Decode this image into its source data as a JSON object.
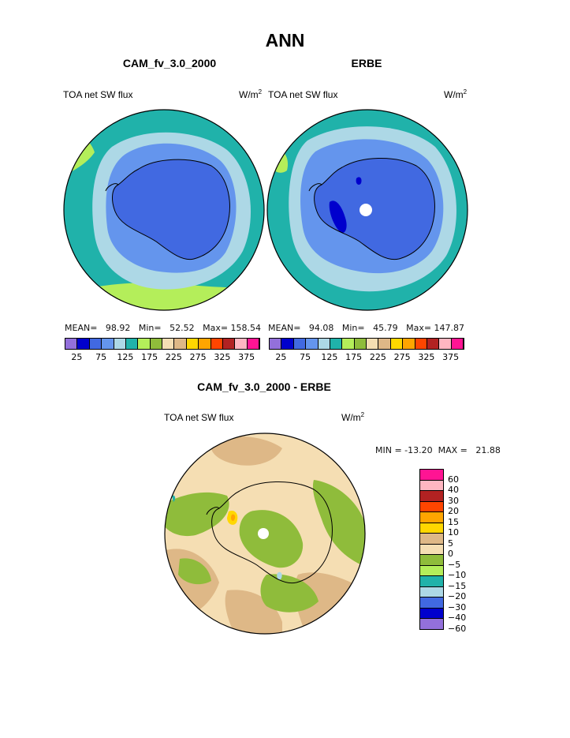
{
  "title": "ANN",
  "left_panel": {
    "title": "CAM_fv_3.0_2000",
    "variable": "TOA net SW flux",
    "units_base": "W/m",
    "units_sup": "2",
    "stats": "MEAN=   98.92   Min=   52.52   Max= 158.54",
    "mean": 98.92,
    "min": 52.52,
    "max": 158.54
  },
  "right_panel": {
    "title": "ERBE",
    "variable": "TOA net SW flux",
    "units_base": "W/m",
    "units_sup": "2",
    "stats": "MEAN=   94.08   Min=   45.79   Max= 147.87",
    "mean": 94.08,
    "min": 45.79,
    "max": 147.87
  },
  "horizontal_colorbar": {
    "colors": [
      "#9370db",
      "#0000cd",
      "#4169e1",
      "#6495ed",
      "#add8e6",
      "#20b2aa",
      "#b4ee5a",
      "#8fbc3b",
      "#f5deb3",
      "#deb887",
      "#ffd700",
      "#ffa500",
      "#ff4500",
      "#b22222",
      "#ffb6c1",
      "#ff1493"
    ],
    "tick_labels": [
      "25",
      "75",
      "125",
      "175",
      "225",
      "275",
      "325",
      "375"
    ]
  },
  "diff_panel": {
    "title": "CAM_fv_3.0_2000 - ERBE",
    "variable": "TOA net SW flux",
    "units_base": "W/m",
    "units_sup": "2",
    "stats": "MIN = -13.20  MAX =   21.88",
    "min": -13.2,
    "max": 21.88
  },
  "vertical_colorbar": {
    "colors": [
      "#ff1493",
      "#ffb6c1",
      "#b22222",
      "#ff4500",
      "#ffa500",
      "#ffd700",
      "#deb887",
      "#f5deb3",
      "#8fbc3b",
      "#b4ee5a",
      "#20b2aa",
      "#add8e6",
      "#4169e1",
      "#0000cd",
      "#9370db"
    ],
    "labels": [
      "60",
      "40",
      "30",
      "20",
      "15",
      "10",
      "5",
      "0",
      "−5",
      "−10",
      "−15",
      "−20",
      "−30",
      "−40",
      "−60"
    ]
  },
  "palette": {
    "ocean": "#20b2aa",
    "band_light": "#add8e6",
    "band_mid": "#6495ed",
    "land": "#4169e1",
    "dark": "#0000cd",
    "green": "#b4ee5a",
    "diff_bg": "#f5deb3",
    "diff_tan": "#deb887",
    "diff_green": "#8fbc3b"
  }
}
